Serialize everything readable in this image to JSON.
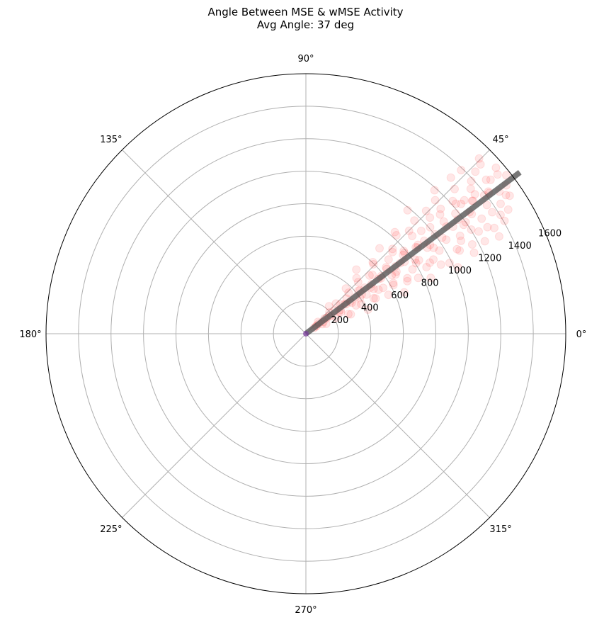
{
  "chart_data": {
    "type": "scatter",
    "projection": "polar",
    "title": "Angle Between MSE & wMSE Activity",
    "subtitle": "Avg Angle: 37 deg",
    "theta_ticks_deg": [
      0,
      45,
      90,
      135,
      180,
      225,
      270,
      315
    ],
    "theta_tick_labels": [
      "0°",
      "45°",
      "90°",
      "135°",
      "180°",
      "225°",
      "270°",
      "315°"
    ],
    "r_ticks": [
      200,
      400,
      600,
      800,
      1000,
      1200,
      1400,
      1600
    ],
    "r_tick_labels": [
      "200",
      "400",
      "600",
      "800",
      "1000",
      "1200",
      "1400",
      "1600"
    ],
    "r_label_angle_deg": 22.5,
    "rlim": [
      0,
      1600
    ],
    "grid": true,
    "series": [
      {
        "marker": "circle",
        "color": "#ff0000",
        "opacity": 0.06,
        "points_theta_r": [
          [
            36.7,
            82
          ],
          [
            30.5,
            117
          ],
          [
            39.2,
            148
          ],
          [
            42.2,
            195
          ],
          [
            27.8,
            210
          ],
          [
            33.6,
            243
          ],
          [
            45.1,
            262
          ],
          [
            24.9,
            288
          ],
          [
            36.2,
            306
          ],
          [
            40.8,
            331
          ],
          [
            29.4,
            355
          ],
          [
            48.5,
            372
          ],
          [
            33.3,
            398
          ],
          [
            21.2,
            410
          ],
          [
            38.9,
            428
          ],
          [
            44.6,
            452
          ],
          [
            27.6,
            471
          ],
          [
            35.5,
            489
          ],
          [
            51.8,
            502
          ],
          [
            31.2,
            523
          ],
          [
            41.5,
            547
          ],
          [
            25.2,
            562
          ],
          [
            37.4,
            584
          ],
          [
            46.9,
            603
          ],
          [
            30.1,
            622
          ],
          [
            39.6,
            641
          ],
          [
            22.8,
            657
          ],
          [
            34.4,
            676
          ],
          [
            49.2,
            694
          ],
          [
            28.7,
            712
          ],
          [
            43.3,
            733
          ],
          [
            36.1,
            751
          ],
          [
            26.4,
            772
          ],
          [
            40.2,
            789
          ],
          [
            32.6,
            806
          ],
          [
            47.4,
            823
          ],
          [
            24.1,
            842
          ],
          [
            38.2,
            861
          ],
          [
            29.8,
            879
          ],
          [
            44.9,
            897
          ],
          [
            35.3,
            916
          ],
          [
            27.1,
            934
          ],
          [
            41.7,
            951
          ],
          [
            31.9,
            968
          ],
          [
            50.5,
            984
          ],
          [
            37.6,
            1003
          ],
          [
            23.6,
            1021
          ],
          [
            33.8,
            1040
          ],
          [
            45.6,
            1058
          ],
          [
            28.4,
            1076
          ],
          [
            39.1,
            1094
          ],
          [
            30.9,
            1113
          ],
          [
            42.8,
            1131
          ],
          [
            25.7,
            1149
          ],
          [
            36.9,
            1168
          ],
          [
            48.1,
            1186
          ],
          [
            32.2,
            1203
          ],
          [
            40.9,
            1222
          ],
          [
            27.3,
            1240
          ],
          [
            35.8,
            1259
          ],
          [
            44.2,
            1277
          ],
          [
            30.4,
            1296
          ],
          [
            38.5,
            1314
          ],
          [
            26.7,
            1332
          ],
          [
            41.3,
            1351
          ],
          [
            33.1,
            1369
          ],
          [
            46.5,
            1388
          ],
          [
            29.6,
            1406
          ],
          [
            37.9,
            1424
          ],
          [
            43.7,
            1443
          ],
          [
            31.5,
            1461
          ],
          [
            39.8,
            1480
          ],
          [
            34.7,
            1498
          ],
          [
            45.3,
            1516
          ],
          [
            36.5,
            1535
          ],
          [
            41.1,
            1553
          ],
          [
            38.3,
            1572
          ],
          [
            35.1,
            62
          ],
          [
            44.3,
            104
          ],
          [
            26.1,
            139
          ],
          [
            37.2,
            176
          ],
          [
            49.8,
            221
          ],
          [
            31.7,
            252
          ],
          [
            40.4,
            279
          ],
          [
            23.4,
            301
          ],
          [
            35.9,
            337
          ],
          [
            43.9,
            364
          ],
          [
            28.1,
            386
          ],
          [
            39.4,
            417
          ],
          [
            32.8,
            444
          ],
          [
            47.7,
            463
          ],
          [
            26.9,
            481
          ],
          [
            37.1,
            507
          ],
          [
            42.4,
            531
          ],
          [
            30.7,
            553
          ],
          [
            36.4,
            574
          ],
          [
            45.8,
            596
          ],
          [
            29.1,
            617
          ],
          [
            38.7,
            637
          ],
          [
            33.4,
            662
          ],
          [
            41.9,
            684
          ],
          [
            27.4,
            703
          ],
          [
            36.8,
            724
          ],
          [
            44.4,
            746
          ],
          [
            31.1,
            767
          ],
          [
            39.3,
            785
          ],
          [
            34.2,
            812
          ],
          [
            48.8,
            831
          ],
          [
            28.9,
            848
          ],
          [
            37.7,
            868
          ],
          [
            42.6,
            889
          ],
          [
            30.2,
            908
          ],
          [
            38.1,
            926
          ],
          [
            33.9,
            947
          ],
          [
            46.2,
            965
          ],
          [
            26.2,
            986
          ],
          [
            40.6,
            1007
          ],
          [
            35.2,
            1027
          ],
          [
            43.1,
            1046
          ],
          [
            29.2,
            1066
          ],
          [
            37.3,
            1087
          ],
          [
            41.6,
            1105
          ],
          [
            32.4,
            1124
          ],
          [
            45.9,
            1144
          ],
          [
            28.2,
            1162
          ],
          [
            38.8,
            1181
          ],
          [
            34.9,
            1199
          ],
          [
            42.1,
            1218
          ],
          [
            30.6,
            1236
          ],
          [
            36.6,
            1255
          ],
          [
            40.1,
            1275
          ],
          [
            33.2,
            1293
          ],
          [
            47.1,
            1311
          ],
          [
            29.3,
            1330
          ],
          [
            39.5,
            1348
          ],
          [
            35.4,
            1367
          ],
          [
            42.7,
            1385
          ],
          [
            31.4,
            1404
          ],
          [
            37.5,
            1422
          ],
          [
            33.7,
            1441
          ],
          [
            40.5,
            1459
          ],
          [
            36.3,
            1478
          ],
          [
            44.1,
            1497
          ],
          [
            34.1,
            1515
          ],
          [
            39.7,
            1534
          ],
          [
            37.8,
            1390
          ],
          [
            38.6,
            1310
          ],
          [
            39.9,
            1245
          ],
          [
            34.6,
            1180
          ],
          [
            36.0,
            1120
          ],
          [
            35.6,
            940
          ],
          [
            38.4,
            880
          ],
          [
            33.0,
            830
          ],
          [
            39.0,
            770
          ],
          [
            36.95,
            690
          ],
          [
            34.3,
            640
          ],
          [
            37.0,
            560
          ],
          [
            33.5,
            500
          ],
          [
            38.0,
            460
          ],
          [
            35.0,
            420
          ],
          [
            36.35,
            380
          ],
          [
            33.95,
            340
          ],
          [
            37.45,
            300
          ],
          [
            34.45,
            260
          ],
          [
            38.25,
            230
          ],
          [
            35.45,
            190
          ],
          [
            36.75,
            160
          ],
          [
            34.05,
            130
          ],
          [
            37.95,
            100
          ],
          [
            35.75,
            75
          ]
        ]
      }
    ],
    "mean_line": {
      "theta_deg": 37,
      "r": [
        0,
        1650
      ],
      "color": "#555555",
      "opacity": 0.8
    }
  }
}
